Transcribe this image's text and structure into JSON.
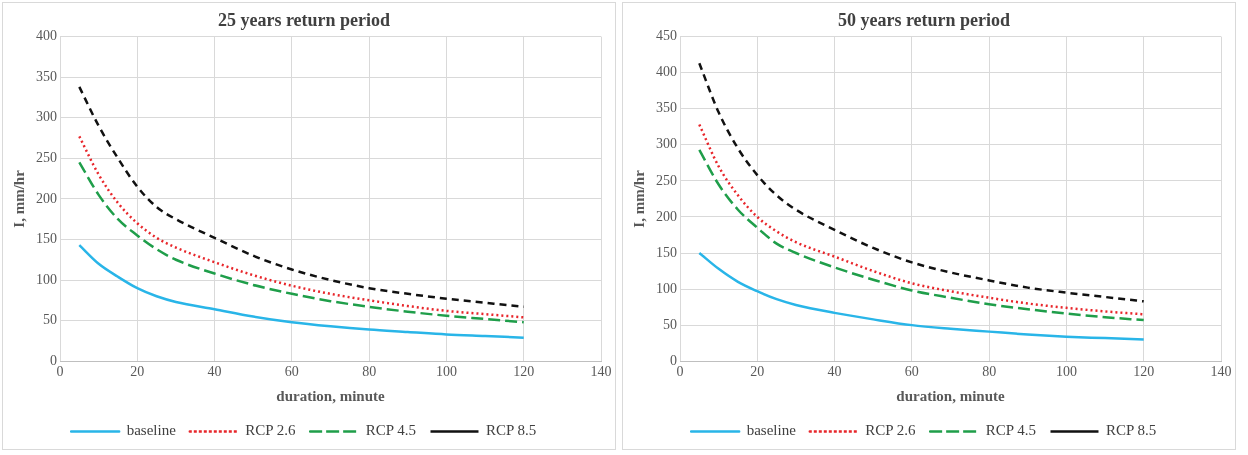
{
  "chart_data": [
    {
      "type": "line",
      "title": "25 years return period",
      "xlabel": "duration, minute",
      "ylabel": "I, mm/hr",
      "x": [
        5,
        10,
        15,
        20,
        25,
        30,
        40,
        50,
        60,
        70,
        80,
        90,
        100,
        110,
        120
      ],
      "xlim": [
        0,
        140
      ],
      "xticks": [
        0,
        20,
        40,
        60,
        80,
        100,
        120,
        140
      ],
      "ylim": [
        0,
        400
      ],
      "yticks": [
        0,
        50,
        100,
        150,
        200,
        250,
        300,
        350,
        400
      ],
      "grid": true,
      "legend": "bottom",
      "marker": "none",
      "series": [
        {
          "name": "baseline",
          "color": "#29b5e8",
          "line_style": "solid",
          "values": [
            143,
            120,
            104,
            90,
            80,
            73,
            64,
            55,
            48,
            43,
            39,
            36,
            33,
            31,
            29
          ]
        },
        {
          "name": "RCP 2.6",
          "color": "#e8262b",
          "line_style": "dotted",
          "values": [
            277,
            230,
            195,
            170,
            152,
            140,
            122,
            106,
            93,
            83,
            75,
            68,
            62,
            58,
            54
          ]
        },
        {
          "name": "RCP 4.5",
          "color": "#1f9e4a",
          "line_style": "dashed",
          "values": [
            245,
            205,
            175,
            155,
            138,
            125,
            108,
            94,
            83,
            74,
            67,
            61,
            56,
            52,
            48
          ]
        },
        {
          "name": "RCP 8.5",
          "color": "#111111",
          "line_style": "dashed",
          "values": [
            338,
            290,
            250,
            215,
            190,
            175,
            152,
            130,
            113,
            100,
            90,
            83,
            77,
            72,
            67
          ]
        }
      ]
    },
    {
      "type": "line",
      "title": "50 years return period",
      "xlabel": "duration, minute",
      "ylabel": "I, mm/hr",
      "x": [
        5,
        10,
        15,
        20,
        25,
        30,
        40,
        50,
        60,
        70,
        80,
        90,
        100,
        110,
        120
      ],
      "xlim": [
        0,
        140
      ],
      "xticks": [
        0,
        20,
        40,
        60,
        80,
        100,
        120,
        140
      ],
      "ylim": [
        0,
        450
      ],
      "yticks": [
        0,
        50,
        100,
        150,
        200,
        250,
        300,
        350,
        400,
        450
      ],
      "grid": true,
      "legend": "bottom",
      "marker": "none",
      "series": [
        {
          "name": "baseline",
          "color": "#29b5e8",
          "line_style": "solid",
          "values": [
            150,
            128,
            110,
            97,
            86,
            78,
            67,
            58,
            50,
            45,
            41,
            37,
            34,
            32,
            30
          ]
        },
        {
          "name": "RCP 2.6",
          "color": "#e8262b",
          "line_style": "dotted",
          "values": [
            328,
            270,
            230,
            200,
            180,
            165,
            145,
            125,
            108,
            97,
            88,
            80,
            74,
            69,
            65
          ]
        },
        {
          "name": "RCP 4.5",
          "color": "#1f9e4a",
          "line_style": "dashed",
          "values": [
            293,
            245,
            210,
            185,
            163,
            150,
            130,
            113,
            98,
            88,
            79,
            72,
            66,
            61,
            57
          ]
        },
        {
          "name": "RCP 8.5",
          "color": "#111111",
          "line_style": "dashed",
          "values": [
            413,
            345,
            295,
            258,
            230,
            210,
            182,
            157,
            137,
            123,
            112,
            102,
            95,
            89,
            83
          ]
        }
      ]
    }
  ]
}
